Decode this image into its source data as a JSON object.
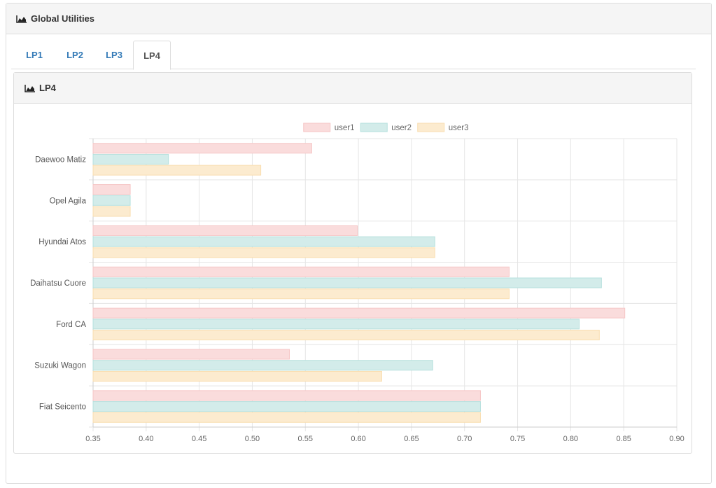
{
  "header": {
    "title": "Global Utilities",
    "icon": "area-chart-icon"
  },
  "tabs": [
    {
      "label": "LP1",
      "active": false
    },
    {
      "label": "LP2",
      "active": false
    },
    {
      "label": "LP3",
      "active": false
    },
    {
      "label": "LP4",
      "active": true
    }
  ],
  "panel": {
    "title": "LP4",
    "icon": "area-chart-icon"
  },
  "chart_data": {
    "type": "bar",
    "orientation": "horizontal",
    "title": "",
    "xlabel": "",
    "ylabel": "",
    "xlim": [
      0.35,
      0.9
    ],
    "ticks": [
      "0.35",
      "0.40",
      "0.45",
      "0.50",
      "0.55",
      "0.60",
      "0.65",
      "0.70",
      "0.75",
      "0.80",
      "0.85",
      "0.90"
    ],
    "grid": true,
    "legend_position": "top",
    "categories": [
      "Daewoo Matiz",
      "Opel Agila",
      "Hyundai Atos",
      "Daihatsu Cuore",
      "Ford CA",
      "Suzuki Wagon",
      "Fiat Seicento"
    ],
    "series": [
      {
        "name": "user1",
        "color": "#fadcdc",
        "border": "#f6c6c6",
        "values": [
          0.556,
          0.385,
          0.599,
          0.742,
          0.851,
          0.535,
          0.715
        ]
      },
      {
        "name": "user2",
        "color": "#d3ecea",
        "border": "#b6e0dd",
        "values": [
          0.421,
          0.385,
          0.672,
          0.829,
          0.808,
          0.67,
          0.715
        ]
      },
      {
        "name": "user3",
        "color": "#fcebcf",
        "border": "#f9deb0",
        "values": [
          0.508,
          0.385,
          0.672,
          0.742,
          0.827,
          0.622,
          0.715
        ]
      }
    ]
  }
}
